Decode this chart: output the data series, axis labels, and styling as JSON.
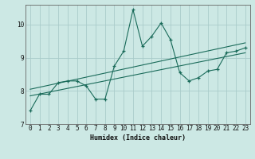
{
  "title": "",
  "xlabel": "Humidex (Indice chaleur)",
  "ylabel": "",
  "background_color": "#cce8e4",
  "grid_color": "#aaccca",
  "line_color": "#1a6b5a",
  "xlim": [
    -0.5,
    23.5
  ],
  "ylim": [
    7.0,
    10.6
  ],
  "xticks": [
    0,
    1,
    2,
    3,
    4,
    5,
    6,
    7,
    8,
    9,
    10,
    11,
    12,
    13,
    14,
    15,
    16,
    17,
    18,
    19,
    20,
    21,
    22,
    23
  ],
  "yticks": [
    7,
    8,
    9,
    10
  ],
  "main_x": [
    0,
    1,
    2,
    3,
    4,
    5,
    6,
    7,
    8,
    9,
    10,
    11,
    12,
    13,
    14,
    15,
    16,
    17,
    18,
    19,
    20,
    21,
    22,
    23
  ],
  "main_y": [
    7.4,
    7.9,
    7.9,
    8.25,
    8.3,
    8.3,
    8.15,
    7.75,
    7.75,
    8.75,
    9.2,
    10.45,
    9.35,
    9.65,
    10.05,
    9.55,
    8.55,
    8.3,
    8.4,
    8.6,
    8.65,
    9.15,
    9.2,
    9.3
  ],
  "line1_x": [
    0,
    23
  ],
  "line1_y": [
    7.85,
    9.15
  ],
  "line2_x": [
    0,
    23
  ],
  "line2_y": [
    8.05,
    9.45
  ]
}
